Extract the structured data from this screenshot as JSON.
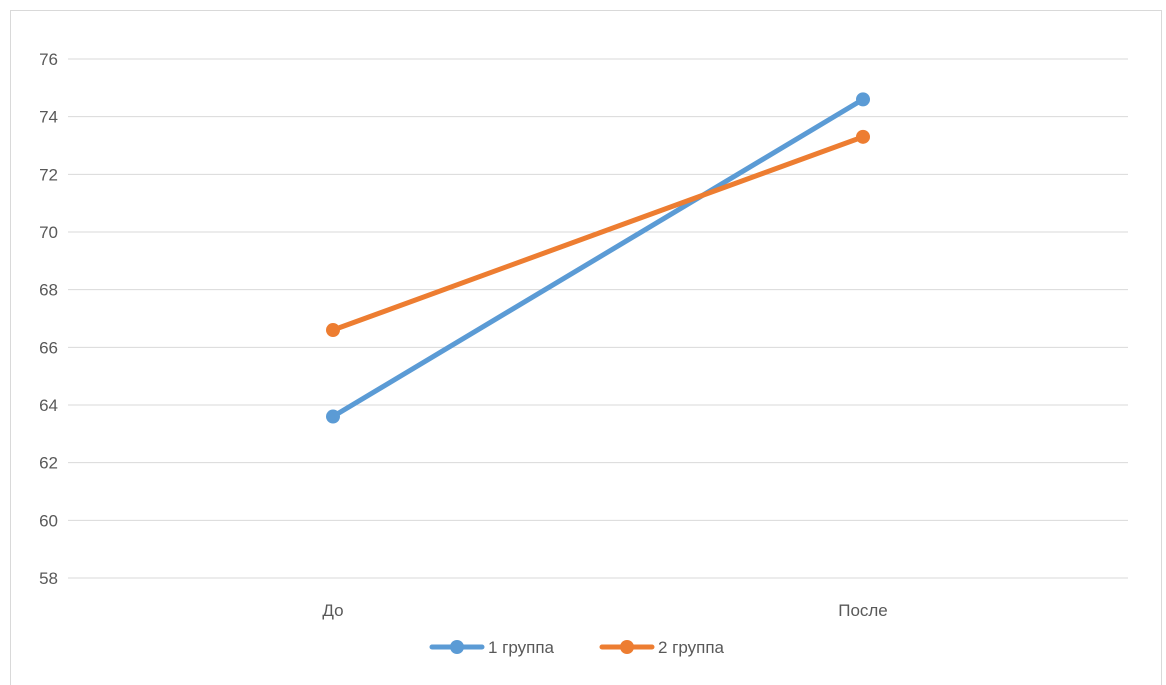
{
  "chart_data": {
    "type": "line",
    "categories": [
      "До",
      "После"
    ],
    "series": [
      {
        "name": "1 группа",
        "values": [
          63.6,
          74.6
        ],
        "color": "#5b9bd5"
      },
      {
        "name": "2 группа",
        "values": [
          66.6,
          73.3
        ],
        "color": "#ed7d31"
      }
    ],
    "ylim": [
      58,
      76
    ],
    "y_ticks": [
      "58",
      "60",
      "62",
      "64",
      "66",
      "68",
      "70",
      "72",
      "74",
      "76"
    ],
    "grid": true,
    "legend_position": "bottom",
    "title": "",
    "xlabel": "",
    "ylabel": ""
  }
}
